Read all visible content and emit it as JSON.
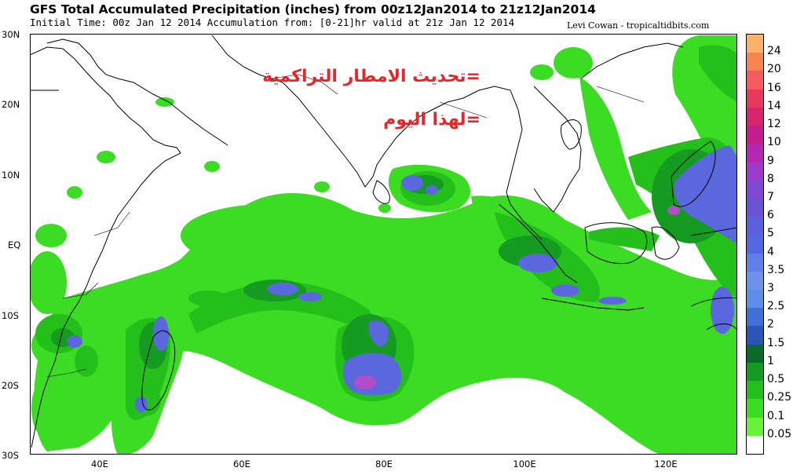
{
  "header": {
    "title": "GFS Total Accumulated Precipitation (inches) from 00z12Jan2014 to 21z12Jan2014",
    "subtitle": "Initial Time: 00z Jan 12 2014 Accumulation from: [0-21]hr valid at 21z Jan 12 2014",
    "credit": "Levi Cowan - tropicaltidbits.com"
  },
  "overlay": {
    "line1": "=تحديث الامطار التراكمية",
    "line2": "=لهذا اليوم",
    "color": "#e8262a"
  },
  "axes": {
    "lat_labels": [
      "30N",
      "20N",
      "10N",
      "EQ",
      "10S",
      "20S",
      "30S"
    ],
    "lon_labels": [
      "40E",
      "60E",
      "80E",
      "100E",
      "120E"
    ]
  },
  "legend": {
    "unit": "inches",
    "levels": [
      "24",
      "20",
      "16",
      "14",
      "12",
      "10",
      "9",
      "8",
      "7",
      "6",
      "5",
      "4",
      "3.5",
      "3",
      "2.5",
      "2",
      "1.5",
      "1",
      "0.5",
      "0.25",
      "0.1",
      "0.05"
    ],
    "colors": [
      "#fbb26a",
      "#f7844f",
      "#f45a5f",
      "#e8385c",
      "#d8246a",
      "#c21f8b",
      "#b328b0",
      "#9c3ac9",
      "#7f49d2",
      "#6a52d6",
      "#5a5fdd",
      "#5168e0",
      "#5f7ee8",
      "#6d92ec",
      "#5b8ee8",
      "#3f70d4",
      "#2c55b8",
      "#0b6a2a",
      "#159a22",
      "#24bf1a",
      "#3ddc24",
      "#68f23a",
      "#ffffff"
    ]
  },
  "colors": {
    "land_border": "#000000",
    "precip_light": "#3ddc24",
    "precip_medium": "#24bf1a",
    "precip_heavy": "#159a22",
    "precip_blue": "#5b67dd",
    "precip_purple": "#b04dc9"
  }
}
